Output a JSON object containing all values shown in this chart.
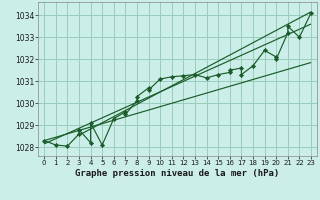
{
  "title": "Graphe pression niveau de la mer (hPa)",
  "bg_color": "#cceee8",
  "plot_bg_color": "#cceee8",
  "grid_color": "#99ccbb",
  "line_color": "#1a5c2a",
  "marker_color": "#1a5c2a",
  "xlim": [
    -0.5,
    23.5
  ],
  "ylim": [
    1027.6,
    1034.6
  ],
  "xticks": [
    0,
    1,
    2,
    3,
    4,
    5,
    6,
    7,
    8,
    9,
    10,
    11,
    12,
    13,
    14,
    15,
    16,
    17,
    18,
    19,
    20,
    21,
    22,
    23
  ],
  "yticks": [
    1028,
    1029,
    1030,
    1031,
    1032,
    1033,
    1034
  ],
  "data_x": [
    0,
    1,
    2,
    3,
    3,
    4,
    4,
    5,
    6,
    7,
    7,
    8,
    8,
    9,
    9,
    10,
    11,
    12,
    13,
    14,
    15,
    16,
    16,
    17,
    17,
    18,
    19,
    20,
    20,
    21,
    21,
    22,
    23
  ],
  "data_y": [
    1028.3,
    1028.1,
    1028.05,
    1028.6,
    1028.8,
    1028.2,
    1029.1,
    1028.1,
    1029.3,
    1029.6,
    1029.5,
    1030.1,
    1030.3,
    1030.7,
    1030.6,
    1031.1,
    1031.2,
    1031.25,
    1031.3,
    1031.15,
    1031.3,
    1031.4,
    1031.5,
    1031.6,
    1031.3,
    1031.7,
    1032.4,
    1032.1,
    1032.0,
    1033.2,
    1033.5,
    1033.0,
    1034.1
  ],
  "trend_lines": [
    [
      [
        0,
        23
      ],
      [
        1028.15,
        1033.6
      ]
    ],
    [
      [
        0,
        23
      ],
      [
        1028.3,
        1031.85
      ]
    ],
    [
      [
        3,
        23
      ],
      [
        1028.55,
        1034.15
      ]
    ]
  ]
}
